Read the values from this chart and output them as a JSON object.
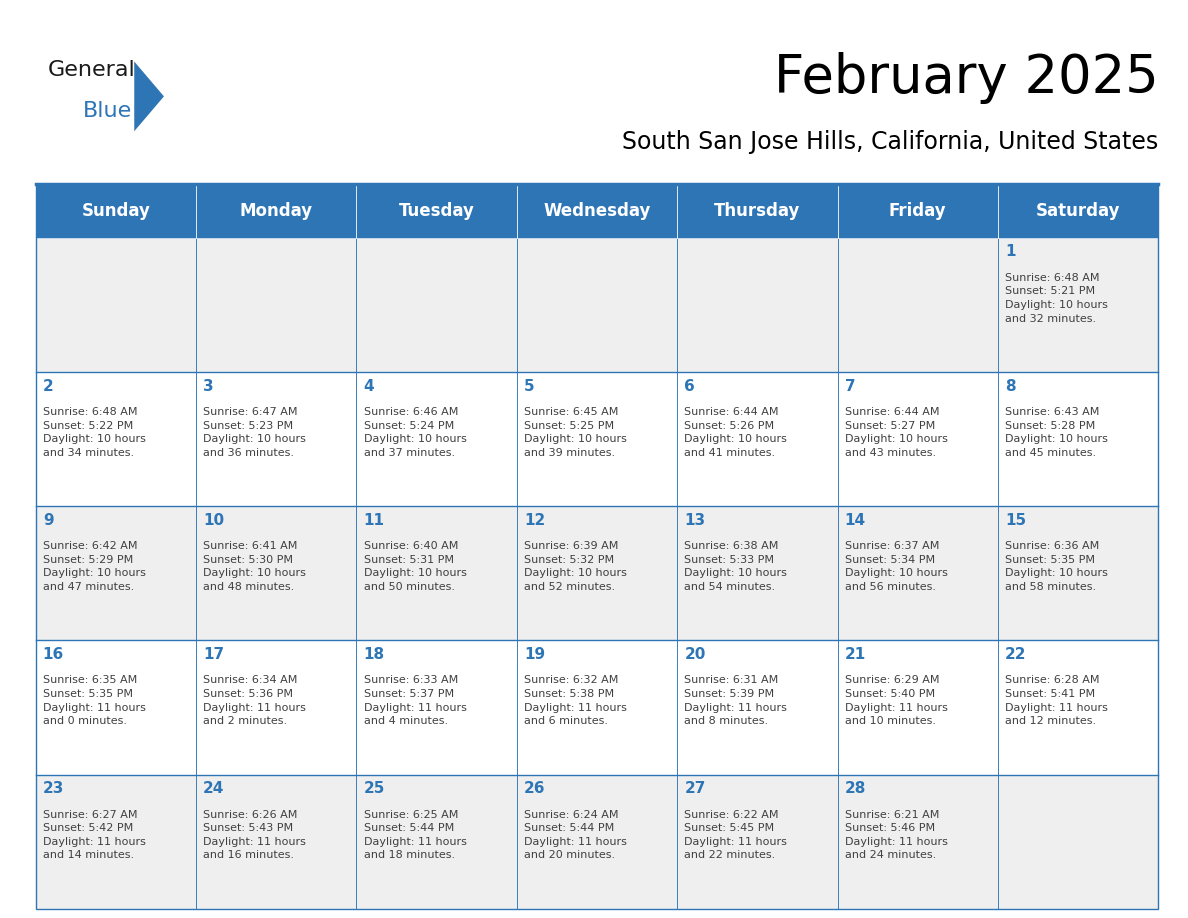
{
  "title": "February 2025",
  "subtitle": "South San Jose Hills, California, United States",
  "header_bg": "#2E75B6",
  "header_text_color": "#FFFFFF",
  "cell_bg_odd": "#EFEFEF",
  "cell_bg_even": "#FFFFFF",
  "day_number_color": "#2E75B6",
  "cell_text_color": "#404040",
  "border_color": "#2E75B6",
  "days_of_week": [
    "Sunday",
    "Monday",
    "Tuesday",
    "Wednesday",
    "Thursday",
    "Friday",
    "Saturday"
  ],
  "calendar": [
    [
      {
        "day": "",
        "info": ""
      },
      {
        "day": "",
        "info": ""
      },
      {
        "day": "",
        "info": ""
      },
      {
        "day": "",
        "info": ""
      },
      {
        "day": "",
        "info": ""
      },
      {
        "day": "",
        "info": ""
      },
      {
        "day": "1",
        "info": "Sunrise: 6:48 AM\nSunset: 5:21 PM\nDaylight: 10 hours\nand 32 minutes."
      }
    ],
    [
      {
        "day": "2",
        "info": "Sunrise: 6:48 AM\nSunset: 5:22 PM\nDaylight: 10 hours\nand 34 minutes."
      },
      {
        "day": "3",
        "info": "Sunrise: 6:47 AM\nSunset: 5:23 PM\nDaylight: 10 hours\nand 36 minutes."
      },
      {
        "day": "4",
        "info": "Sunrise: 6:46 AM\nSunset: 5:24 PM\nDaylight: 10 hours\nand 37 minutes."
      },
      {
        "day": "5",
        "info": "Sunrise: 6:45 AM\nSunset: 5:25 PM\nDaylight: 10 hours\nand 39 minutes."
      },
      {
        "day": "6",
        "info": "Sunrise: 6:44 AM\nSunset: 5:26 PM\nDaylight: 10 hours\nand 41 minutes."
      },
      {
        "day": "7",
        "info": "Sunrise: 6:44 AM\nSunset: 5:27 PM\nDaylight: 10 hours\nand 43 minutes."
      },
      {
        "day": "8",
        "info": "Sunrise: 6:43 AM\nSunset: 5:28 PM\nDaylight: 10 hours\nand 45 minutes."
      }
    ],
    [
      {
        "day": "9",
        "info": "Sunrise: 6:42 AM\nSunset: 5:29 PM\nDaylight: 10 hours\nand 47 minutes."
      },
      {
        "day": "10",
        "info": "Sunrise: 6:41 AM\nSunset: 5:30 PM\nDaylight: 10 hours\nand 48 minutes."
      },
      {
        "day": "11",
        "info": "Sunrise: 6:40 AM\nSunset: 5:31 PM\nDaylight: 10 hours\nand 50 minutes."
      },
      {
        "day": "12",
        "info": "Sunrise: 6:39 AM\nSunset: 5:32 PM\nDaylight: 10 hours\nand 52 minutes."
      },
      {
        "day": "13",
        "info": "Sunrise: 6:38 AM\nSunset: 5:33 PM\nDaylight: 10 hours\nand 54 minutes."
      },
      {
        "day": "14",
        "info": "Sunrise: 6:37 AM\nSunset: 5:34 PM\nDaylight: 10 hours\nand 56 minutes."
      },
      {
        "day": "15",
        "info": "Sunrise: 6:36 AM\nSunset: 5:35 PM\nDaylight: 10 hours\nand 58 minutes."
      }
    ],
    [
      {
        "day": "16",
        "info": "Sunrise: 6:35 AM\nSunset: 5:35 PM\nDaylight: 11 hours\nand 0 minutes."
      },
      {
        "day": "17",
        "info": "Sunrise: 6:34 AM\nSunset: 5:36 PM\nDaylight: 11 hours\nand 2 minutes."
      },
      {
        "day": "18",
        "info": "Sunrise: 6:33 AM\nSunset: 5:37 PM\nDaylight: 11 hours\nand 4 minutes."
      },
      {
        "day": "19",
        "info": "Sunrise: 6:32 AM\nSunset: 5:38 PM\nDaylight: 11 hours\nand 6 minutes."
      },
      {
        "day": "20",
        "info": "Sunrise: 6:31 AM\nSunset: 5:39 PM\nDaylight: 11 hours\nand 8 minutes."
      },
      {
        "day": "21",
        "info": "Sunrise: 6:29 AM\nSunset: 5:40 PM\nDaylight: 11 hours\nand 10 minutes."
      },
      {
        "day": "22",
        "info": "Sunrise: 6:28 AM\nSunset: 5:41 PM\nDaylight: 11 hours\nand 12 minutes."
      }
    ],
    [
      {
        "day": "23",
        "info": "Sunrise: 6:27 AM\nSunset: 5:42 PM\nDaylight: 11 hours\nand 14 minutes."
      },
      {
        "day": "24",
        "info": "Sunrise: 6:26 AM\nSunset: 5:43 PM\nDaylight: 11 hours\nand 16 minutes."
      },
      {
        "day": "25",
        "info": "Sunrise: 6:25 AM\nSunset: 5:44 PM\nDaylight: 11 hours\nand 18 minutes."
      },
      {
        "day": "26",
        "info": "Sunrise: 6:24 AM\nSunset: 5:44 PM\nDaylight: 11 hours\nand 20 minutes."
      },
      {
        "day": "27",
        "info": "Sunrise: 6:22 AM\nSunset: 5:45 PM\nDaylight: 11 hours\nand 22 minutes."
      },
      {
        "day": "28",
        "info": "Sunrise: 6:21 AM\nSunset: 5:46 PM\nDaylight: 11 hours\nand 24 minutes."
      },
      {
        "day": "",
        "info": ""
      }
    ]
  ],
  "logo_text_general": "General",
  "logo_text_blue": "Blue",
  "logo_color_general": "#1a1a1a",
  "logo_color_blue": "#2E75B6",
  "logo_triangle_color": "#2E75B6",
  "title_fontsize": 38,
  "subtitle_fontsize": 17,
  "header_fontsize": 12,
  "day_num_fontsize": 11,
  "cell_text_fontsize": 8
}
